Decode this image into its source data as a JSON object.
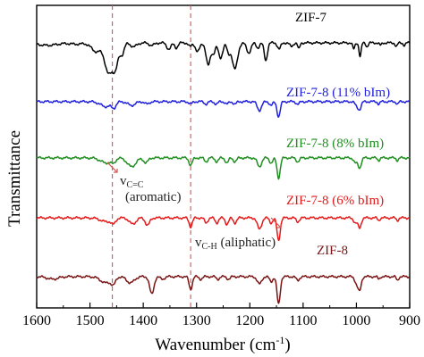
{
  "chart_data": {
    "type": "line",
    "xlabel": "Wavenumber (cm",
    "xlabel_sup": "-1",
    "xlabel_tail": ")",
    "ylabel": "Transmittance",
    "xlim": [
      1600,
      900
    ],
    "x_reversed": true,
    "xticks": [
      1600,
      1500,
      1400,
      1300,
      1200,
      1100,
      1000,
      900
    ],
    "grid": false,
    "reference_lines": [
      {
        "x": 1458,
        "style": "dashed",
        "color": "#d9534f"
      },
      {
        "x": 1311,
        "style": "dashed",
        "color": "#d9534f"
      }
    ],
    "annotations": [
      {
        "main": "v",
        "sub": "C=C",
        "line2": "(aromatic)"
      },
      {
        "main": "v",
        "sub": "C-H",
        "tail": " (aliphatic)"
      }
    ],
    "series": [
      {
        "name": "ZIF-7",
        "color": "#000000",
        "baseline": 0.82,
        "peaks": [
          [
            1580,
            0.02,
            18
          ],
          [
            1525,
            0.01,
            12
          ],
          [
            1488,
            0.07,
            9
          ],
          [
            1465,
            0.24,
            7
          ],
          [
            1452,
            0.18,
            5
          ],
          [
            1440,
            0.09,
            4
          ],
          [
            1418,
            0.03,
            6
          ],
          [
            1384,
            0.02,
            5
          ],
          [
            1352,
            0.05,
            4
          ],
          [
            1338,
            0.04,
            3
          ],
          [
            1312,
            0.03,
            3
          ],
          [
            1298,
            0.07,
            4
          ],
          [
            1278,
            0.18,
            4
          ],
          [
            1268,
            0.08,
            3
          ],
          [
            1255,
            0.12,
            4
          ],
          [
            1240,
            0.08,
            3
          ],
          [
            1228,
            0.21,
            5
          ],
          [
            1202,
            0.08,
            4
          ],
          [
            1185,
            0.04,
            3
          ],
          [
            1170,
            0.14,
            3
          ],
          [
            1145,
            0.05,
            3
          ],
          [
            1122,
            0.03,
            3
          ],
          [
            1108,
            0.05,
            2
          ],
          [
            1005,
            0.05,
            2
          ],
          [
            993,
            0.11,
            2
          ],
          [
            980,
            0.03,
            2
          ],
          [
            955,
            0.02,
            2
          ],
          [
            925,
            0.03,
            2
          ],
          [
            910,
            0.02,
            2
          ]
        ]
      },
      {
        "name": "ZIF-7-8 (11% bIm)",
        "color": "#1f1fdd",
        "baseline": 0.35,
        "peaks": [
          [
            1470,
            0.04,
            10
          ],
          [
            1455,
            0.04,
            4
          ],
          [
            1422,
            0.03,
            7
          ],
          [
            1393,
            0.02,
            4
          ],
          [
            1311,
            0.02,
            3
          ],
          [
            1282,
            0.02,
            3
          ],
          [
            1263,
            0.02,
            3
          ],
          [
            1243,
            0.02,
            3
          ],
          [
            1228,
            0.02,
            3
          ],
          [
            1182,
            0.07,
            4
          ],
          [
            1160,
            0.03,
            3
          ],
          [
            1146,
            0.12,
            3
          ],
          [
            1110,
            0.02,
            3
          ],
          [
            1000,
            0.03,
            3
          ],
          [
            994,
            0.06,
            3
          ],
          [
            958,
            0.02,
            2
          ],
          [
            923,
            0.02,
            2
          ]
        ]
      },
      {
        "name": "ZIF-7-8 (8% bIm)",
        "color": "#1f8f1f",
        "baseline": -0.1,
        "peaks": [
          [
            1470,
            0.04,
            10
          ],
          [
            1456,
            0.03,
            4
          ],
          [
            1422,
            0.07,
            8
          ],
          [
            1395,
            0.04,
            4
          ],
          [
            1311,
            0.06,
            3
          ],
          [
            1282,
            0.03,
            3
          ],
          [
            1262,
            0.03,
            3
          ],
          [
            1243,
            0.04,
            3
          ],
          [
            1228,
            0.03,
            3
          ],
          [
            1182,
            0.07,
            4
          ],
          [
            1160,
            0.04,
            3
          ],
          [
            1146,
            0.16,
            3
          ],
          [
            1110,
            0.03,
            3
          ],
          [
            1002,
            0.04,
            3
          ],
          [
            994,
            0.08,
            3
          ],
          [
            958,
            0.02,
            2
          ],
          [
            923,
            0.02,
            2
          ]
        ]
      },
      {
        "name": "ZIF-7-8 (6% bIm)",
        "color": "#e51919",
        "baseline": -0.58,
        "peaks": [
          [
            1470,
            0.03,
            10
          ],
          [
            1456,
            0.04,
            4
          ],
          [
            1420,
            0.05,
            6
          ],
          [
            1392,
            0.06,
            4
          ],
          [
            1311,
            0.07,
            3
          ],
          [
            1282,
            0.04,
            3
          ],
          [
            1262,
            0.04,
            3
          ],
          [
            1243,
            0.05,
            3
          ],
          [
            1228,
            0.04,
            3
          ],
          [
            1182,
            0.09,
            4
          ],
          [
            1160,
            0.04,
            3
          ],
          [
            1146,
            0.18,
            3
          ],
          [
            1110,
            0.03,
            3
          ],
          [
            1002,
            0.04,
            3
          ],
          [
            994,
            0.08,
            3
          ],
          [
            958,
            0.02,
            2
          ],
          [
            923,
            0.02,
            2
          ]
        ]
      },
      {
        "name": "ZIF-8",
        "color": "#7a1414",
        "baseline": -1.05,
        "peaks": [
          [
            1570,
            0.02,
            10
          ],
          [
            1470,
            0.05,
            10
          ],
          [
            1456,
            0.05,
            4
          ],
          [
            1424,
            0.05,
            7
          ],
          [
            1384,
            0.14,
            4
          ],
          [
            1364,
            0.02,
            4
          ],
          [
            1311,
            0.1,
            3
          ],
          [
            1292,
            0.02,
            3
          ],
          [
            1260,
            0.02,
            3
          ],
          [
            1240,
            0.02,
            3
          ],
          [
            1182,
            0.06,
            4
          ],
          [
            1160,
            0.04,
            3
          ],
          [
            1146,
            0.22,
            3
          ],
          [
            1110,
            0.03,
            3
          ],
          [
            1000,
            0.05,
            3
          ],
          [
            994,
            0.11,
            3
          ],
          [
            958,
            0.02,
            2
          ],
          [
            923,
            0.03,
            2
          ]
        ]
      }
    ]
  }
}
